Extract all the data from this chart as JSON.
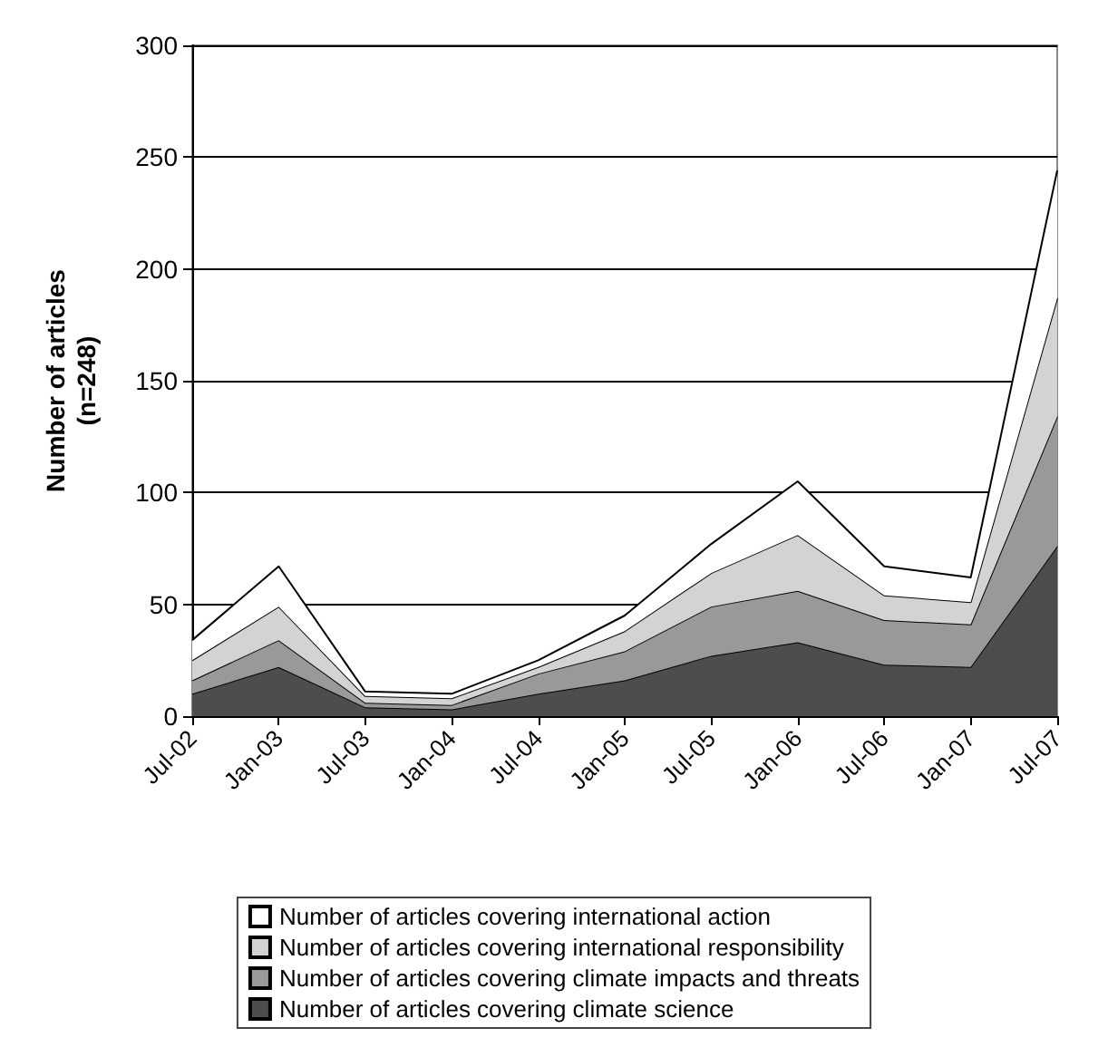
{
  "chart_data": {
    "type": "area",
    "stacked": true,
    "ylabel": "Number of articles\n(n=248)",
    "categories": [
      "Jul-02",
      "Jan-03",
      "Jul-03",
      "Jan-04",
      "Jul-04",
      "Jan-05",
      "Jul-05",
      "Jan-06",
      "Jul-06",
      "Jan-07",
      "Jul-07"
    ],
    "series": [
      {
        "name": "Number of articles covering climate science",
        "color": "#4d4d4d",
        "values": [
          10,
          22,
          4,
          3,
          10,
          16,
          27,
          33,
          23,
          22,
          76
        ]
      },
      {
        "name": "Number of articles covering climate impacts and threats",
        "color": "#999999",
        "values": [
          6,
          12,
          2,
          2,
          9,
          13,
          22,
          23,
          20,
          19,
          58
        ]
      },
      {
        "name": "Number of articles covering international responsibility",
        "color": "#d3d3d3",
        "values": [
          9,
          15,
          3,
          3,
          3,
          9,
          15,
          25,
          11,
          10,
          53
        ]
      },
      {
        "name": "Number of articles covering international action",
        "color": "#ffffff",
        "values": [
          9,
          18,
          2,
          2,
          3,
          7,
          13,
          24,
          13,
          11,
          57
        ]
      }
    ],
    "ylim": [
      0,
      300
    ],
    "yticks": [
      0,
      50,
      100,
      150,
      200,
      250,
      300
    ],
    "grid": "y",
    "legend": "bottom"
  }
}
